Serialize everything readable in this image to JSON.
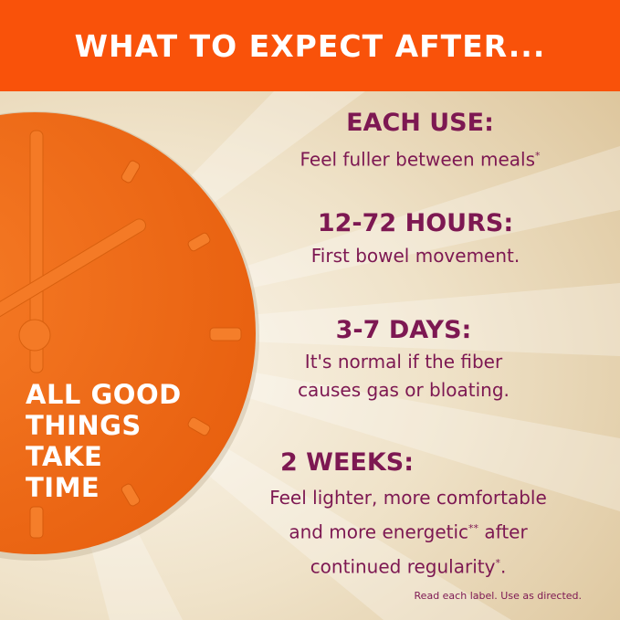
{
  "header": {
    "title": "WHAT TO EXPECT AFTER..."
  },
  "colors": {
    "banner": "#f9520a",
    "clock": "#f26a1b",
    "text": "#7d1852",
    "background": "#efe2c8"
  },
  "clock": {
    "icon": "clock-icon",
    "time_shown": "2:00"
  },
  "tagline": [
    "ALL GOOD",
    "THINGS",
    "TAKE",
    "TIME"
  ],
  "steps": [
    {
      "heading": "EACH USE:",
      "lines": [
        "Feel fuller between meals"
      ],
      "mark": "*"
    },
    {
      "heading": "12-72 HOURS:",
      "lines": [
        "First bowel movement."
      ]
    },
    {
      "heading": "3-7 DAYS:",
      "lines": [
        "It's normal if the fiber",
        "causes gas or bloating."
      ]
    },
    {
      "heading": "2 WEEKS:",
      "line1": "Feel lighter, more comfortable",
      "line2a": "and more energetic",
      "mark2": "**",
      "line2b": " after",
      "line3": "continued regularity",
      "mark3": "*"
    }
  ],
  "footnote": "Read each label. Use as directed."
}
